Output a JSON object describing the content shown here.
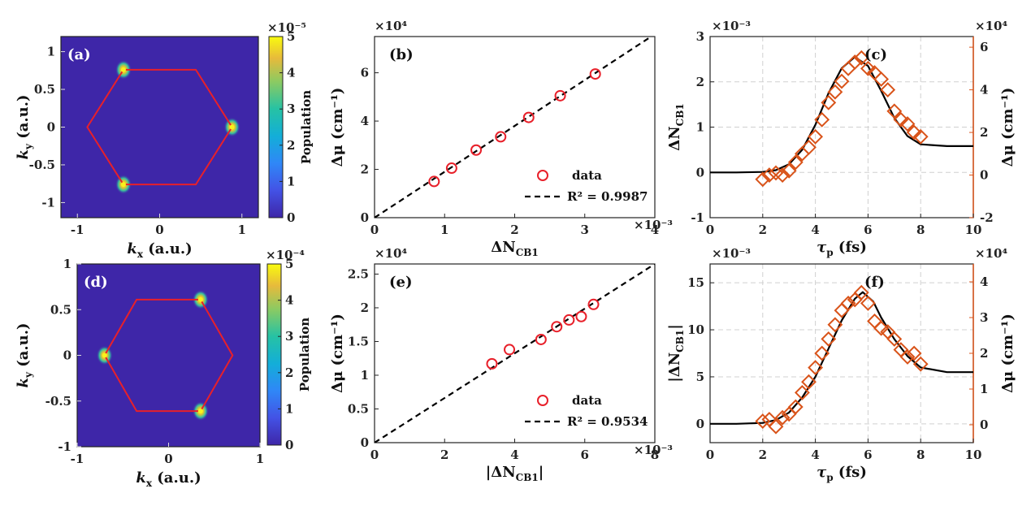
{
  "colors": {
    "heatmap_bg": "#3e26a8",
    "hexagon": "#e8202a",
    "hotspot": "#f9f21b",
    "red_marker": "#e8202a",
    "orange": "#d95319",
    "black": "#000000",
    "grid": "#d0d0d0"
  },
  "chart_data": [
    {
      "id": "a",
      "panel_label": "(a)",
      "type": "heatmap",
      "xlabel": "k_x (a.u.)",
      "ylabel": "k_y (a.u.)",
      "xlim": [
        -1.2,
        1.2
      ],
      "ylim": [
        -1.2,
        1.2
      ],
      "xticks": [
        -1,
        0,
        1
      ],
      "xtick_labels": [
        "-1",
        "0",
        "1"
      ],
      "yticks": [
        -1,
        -0.5,
        0,
        0.5,
        1
      ],
      "ytick_labels": [
        "-1",
        "-0.5",
        "0",
        "0.5",
        "1"
      ],
      "hexagon": [
        [
          0.88,
          0
        ],
        [
          0.44,
          0.76
        ],
        [
          -0.44,
          0.76
        ],
        [
          -0.88,
          0
        ],
        [
          -0.44,
          -0.76
        ],
        [
          0.44,
          -0.76
        ]
      ],
      "hotspots": [
        [
          -0.44,
          0.76
        ],
        [
          0.88,
          0
        ],
        [
          -0.44,
          -0.76
        ]
      ],
      "colorbar": {
        "label": "Population",
        "exponent": "×10⁻⁵",
        "range": [
          0,
          5
        ],
        "ticks": [
          "0",
          "1",
          "2",
          "3",
          "4",
          "5"
        ]
      }
    },
    {
      "id": "b",
      "panel_label": "(b)",
      "type": "scatter",
      "xlabel": "ΔN_CB1",
      "ylabel": "Δμ (cm⁻¹)",
      "x_exponent": "×10⁻³",
      "y_exponent": "×10⁴",
      "xlim": [
        0,
        4
      ],
      "ylim": [
        0,
        7.5
      ],
      "xticks": [
        0,
        1,
        2,
        3,
        4
      ],
      "yticks": [
        0,
        2,
        4,
        6
      ],
      "series": [
        {
          "name": "data",
          "marker": "circle",
          "x": [
            0.85,
            1.1,
            1.45,
            1.8,
            2.2,
            2.65,
            3.15
          ],
          "y": [
            1.5,
            2.05,
            2.8,
            3.35,
            4.15,
            5.05,
            5.95
          ]
        }
      ],
      "fit": {
        "name": "R² = 0.9987",
        "x": [
          0,
          4
        ],
        "y": [
          0,
          7.6
        ]
      },
      "legend": {
        "position": "bottom-right",
        "entries": [
          "data",
          "R² = 0.9987"
        ]
      }
    },
    {
      "id": "c",
      "panel_label": "(c)",
      "type": "line",
      "xlabel": "τ_p (fs)",
      "ylabel": "ΔN_CB1",
      "ylabel_right": "Δμ (cm⁻¹)",
      "y_exponent": "×10⁻³",
      "y_right_exponent": "×10⁴",
      "xlim": [
        0,
        10
      ],
      "ylim": [
        -1,
        3
      ],
      "ylim_right": [
        -2,
        6.5
      ],
      "xticks": [
        0,
        2,
        4,
        6,
        8,
        10
      ],
      "yticks": [
        -1,
        0,
        1,
        2,
        3
      ],
      "yticks_right": [
        -2,
        0,
        2,
        4,
        6
      ],
      "grid": true,
      "series": [
        {
          "name": "ΔN_CB1",
          "axis": "left",
          "x": [
            0,
            1,
            2,
            2.5,
            3,
            3.5,
            4,
            4.5,
            5,
            5.5,
            6,
            6.5,
            7,
            7.5,
            8,
            9,
            10
          ],
          "y": [
            0,
            0,
            0.01,
            0.05,
            0.18,
            0.5,
            1.05,
            1.75,
            2.3,
            2.55,
            2.35,
            1.8,
            1.2,
            0.8,
            0.62,
            0.58,
            0.58
          ]
        },
        {
          "name": "Δμ",
          "axis": "right",
          "marker": "diamond",
          "x": [
            2.0,
            2.25,
            2.5,
            2.75,
            3.0,
            3.25,
            3.5,
            3.75,
            4.0,
            4.25,
            4.5,
            4.75,
            5.0,
            5.25,
            5.5,
            5.75,
            6.0,
            6.25,
            6.5,
            6.75,
            7.0,
            7.25,
            7.5,
            7.75,
            8.0
          ],
          "y": [
            -0.2,
            0.0,
            0.1,
            0.0,
            0.2,
            0.6,
            1.0,
            1.3,
            1.8,
            2.6,
            3.4,
            3.9,
            4.4,
            5.0,
            5.3,
            5.5,
            5.0,
            4.8,
            4.5,
            4.0,
            3.0,
            2.6,
            2.4,
            2.0,
            1.8
          ]
        }
      ]
    },
    {
      "id": "d",
      "panel_label": "(d)",
      "type": "heatmap",
      "xlabel": "k_x (a.u.)",
      "ylabel": "k_y (a.u.)",
      "xlim": [
        -1,
        1
      ],
      "ylim": [
        -1,
        1
      ],
      "xticks": [
        -1,
        0,
        1
      ],
      "xtick_labels": [
        "-1",
        "0",
        "1"
      ],
      "yticks": [
        -1,
        -0.5,
        0,
        0.5,
        1
      ],
      "ytick_labels": [
        "-1",
        "-0.5",
        "0",
        "0.5",
        "1"
      ],
      "hexagon": [
        [
          0.7,
          0
        ],
        [
          0.35,
          0.61
        ],
        [
          -0.35,
          0.61
        ],
        [
          -0.7,
          0
        ],
        [
          -0.35,
          -0.61
        ],
        [
          0.35,
          -0.61
        ]
      ],
      "hotspots": [
        [
          0.35,
          0.61
        ],
        [
          -0.7,
          0
        ],
        [
          0.35,
          -0.61
        ]
      ],
      "colorbar": {
        "label": "Population",
        "exponent": "×10⁻⁴",
        "range": [
          0,
          5
        ],
        "ticks": [
          "0",
          "1",
          "2",
          "3",
          "4",
          "5"
        ]
      }
    },
    {
      "id": "e",
      "panel_label": "(e)",
      "type": "scatter",
      "xlabel": "|ΔN_CB1|",
      "ylabel": "Δμ (cm⁻¹)",
      "x_exponent": "×10⁻³",
      "y_exponent": "×10⁴",
      "xlim": [
        0,
        8
      ],
      "ylim": [
        0,
        2.65
      ],
      "xticks": [
        0,
        2,
        4,
        6,
        8
      ],
      "yticks": [
        0,
        0.5,
        1,
        1.5,
        2,
        2.5
      ],
      "ytick_labels": [
        "0",
        "0.5",
        "1",
        "1.5",
        "2",
        "2.5"
      ],
      "series": [
        {
          "name": "data",
          "marker": "circle",
          "x": [
            3.35,
            3.85,
            4.75,
            5.2,
            5.55,
            5.9,
            6.25
          ],
          "y": [
            1.17,
            1.38,
            1.53,
            1.72,
            1.82,
            1.87,
            2.05
          ]
        }
      ],
      "fit": {
        "name": "R² = 0.9534",
        "x": [
          0,
          8
        ],
        "y": [
          0,
          2.65
        ]
      },
      "legend": {
        "position": "bottom-right",
        "entries": [
          "data",
          "R² = 0.9534"
        ]
      }
    },
    {
      "id": "f",
      "panel_label": "(f)",
      "type": "line",
      "xlabel": "τ_p (fs)",
      "ylabel": "|ΔN_CB1|",
      "ylabel_right": "Δμ (cm⁻¹)",
      "y_exponent": "×10⁻³",
      "y_right_exponent": "×10⁴",
      "xlim": [
        0,
        10
      ],
      "ylim": [
        -2,
        17
      ],
      "ylim_right": [
        -0.5,
        4.5
      ],
      "xticks": [
        0,
        2,
        4,
        6,
        8,
        10
      ],
      "yticks": [
        0,
        5,
        10,
        15
      ],
      "yticks_right": [
        0,
        1,
        2,
        3,
        4
      ],
      "grid": true,
      "series": [
        {
          "name": "|ΔN_CB1|",
          "axis": "left",
          "x": [
            0,
            1,
            2,
            2.5,
            3,
            3.5,
            4,
            4.5,
            5,
            5.5,
            5.8,
            6.2,
            6.5,
            7,
            7.5,
            8,
            9,
            10
          ],
          "y": [
            0,
            0,
            0.1,
            0.4,
            1.2,
            2.8,
            5.0,
            8.0,
            11.0,
            13.3,
            14.0,
            13.0,
            11.3,
            9.0,
            7.2,
            6.0,
            5.5,
            5.5
          ]
        },
        {
          "name": "Δμ",
          "axis": "right",
          "marker": "diamond",
          "x": [
            2.0,
            2.25,
            2.5,
            2.75,
            3.0,
            3.25,
            3.5,
            3.75,
            4.0,
            4.25,
            4.5,
            4.75,
            5.0,
            5.25,
            5.5,
            5.75,
            6.0,
            6.25,
            6.5,
            6.75,
            7.0,
            7.25,
            7.5,
            7.75,
            8.0
          ],
          "y": [
            0.1,
            0.15,
            -0.05,
            0.2,
            0.3,
            0.5,
            0.9,
            1.2,
            1.6,
            2.0,
            2.4,
            2.8,
            3.2,
            3.4,
            3.5,
            3.7,
            3.4,
            2.9,
            2.7,
            2.6,
            2.4,
            2.1,
            1.9,
            2.0,
            1.7
          ]
        }
      ]
    }
  ]
}
